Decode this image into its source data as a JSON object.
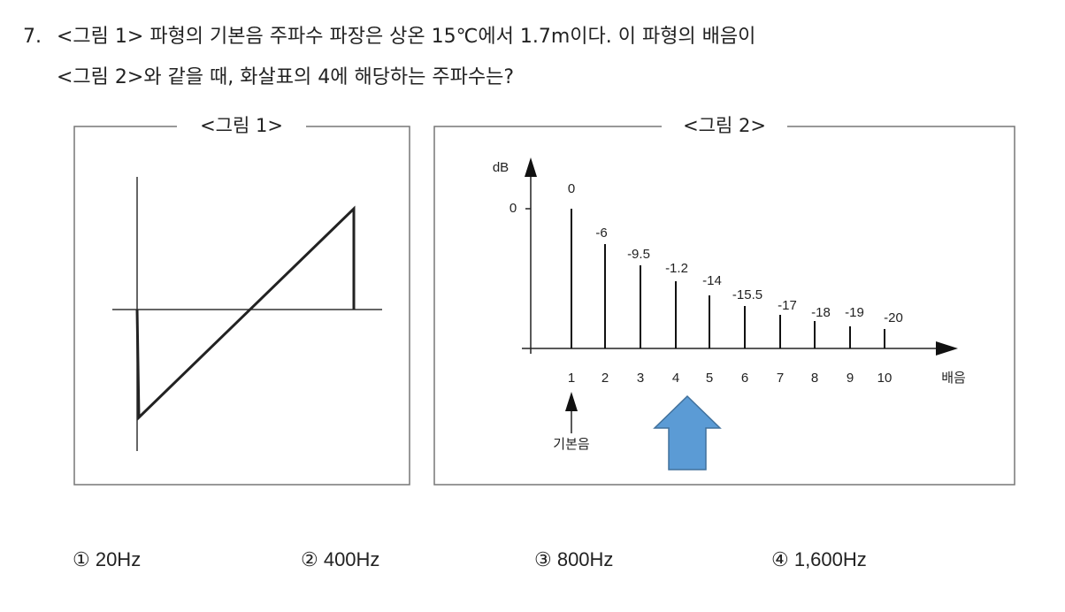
{
  "question": {
    "number": "7.",
    "line1": "<그림 1> 파형의 기본음 주파수 파장은 상온 15℃에서 1.7m이다. 이 파형의 배음이",
    "line2": "<그림 2>와 같을 때, 화살표의 4에 해당하는 주파수는?"
  },
  "figure1": {
    "label": "<그림 1>"
  },
  "figure2": {
    "label": "<그림 2>",
    "y_label": "dB",
    "y_tick": "0",
    "x_label": "배음",
    "fundamental_label": "기본음",
    "harmonics": [
      "1",
      "2",
      "3",
      "4",
      "5",
      "6",
      "7",
      "8",
      "9",
      "10"
    ],
    "levels": [
      "0",
      "-6",
      "-9.5",
      "-1.2",
      "-14",
      "-15.5",
      "-17",
      "-18",
      "-19",
      "-20"
    ]
  },
  "choices": [
    "① 20Hz",
    "② 400Hz",
    "③ 800Hz",
    "④ 1,600Hz"
  ]
}
